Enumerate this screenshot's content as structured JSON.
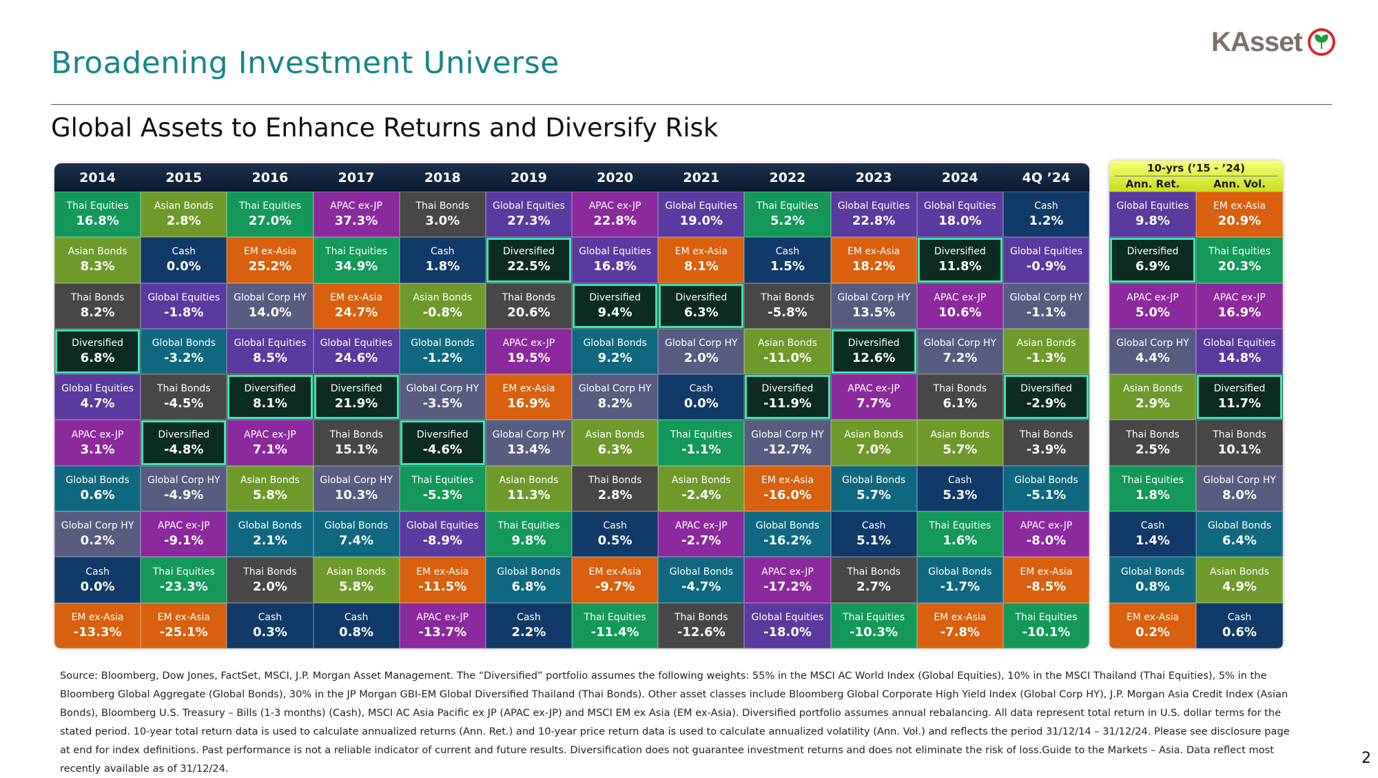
{
  "header": {
    "title": "Broadening Investment Universe",
    "logo": "KAsset",
    "subtitle": "Global Assets to Enhance Returns and Diversify Risk"
  },
  "asset_styles": {
    "Thai Equities": {
      "fill": "#14985a"
    },
    "Asian Bonds": {
      "fill": "#6e9a2c"
    },
    "Thai Bonds": {
      "fill": "#474747"
    },
    "Diversified": {
      "fill": "#0c2b22",
      "outline": "#3fe3b4"
    },
    "Global Equities": {
      "fill": "#5a3a9e"
    },
    "APAC ex-JP": {
      "fill": "#8b2a9c"
    },
    "Global Bonds": {
      "fill": "#0f6880"
    },
    "Global Corp HY": {
      "fill": "#575c80"
    },
    "Cash": {
      "fill": "#103a68"
    },
    "EM ex-Asia": {
      "fill": "#d8600e"
    }
  },
  "table": {
    "columns": [
      {
        "label": "2014",
        "cells": [
          {
            "asset": "Thai Equities",
            "return": "16.8%"
          },
          {
            "asset": "Asian Bonds",
            "return": "8.3%"
          },
          {
            "asset": "Thai Bonds",
            "return": "8.2%"
          },
          {
            "asset": "Diversified",
            "return": "6.8%"
          },
          {
            "asset": "Global Equities",
            "return": "4.7%"
          },
          {
            "asset": "APAC ex-JP",
            "return": "3.1%"
          },
          {
            "asset": "Global Bonds",
            "return": "0.6%"
          },
          {
            "asset": "Global Corp HY",
            "return": "0.2%"
          },
          {
            "asset": "Cash",
            "return": "0.0%"
          },
          {
            "asset": "EM ex-Asia",
            "return": "-13.3%"
          }
        ]
      },
      {
        "label": "2015",
        "cells": [
          {
            "asset": "Asian Bonds",
            "return": "2.8%"
          },
          {
            "asset": "Cash",
            "return": "0.0%"
          },
          {
            "asset": "Global Equities",
            "return": "-1.8%"
          },
          {
            "asset": "Global Bonds",
            "return": "-3.2%"
          },
          {
            "asset": "Thai Bonds",
            "return": "-4.5%"
          },
          {
            "asset": "Diversified",
            "return": "-4.8%"
          },
          {
            "asset": "Global Corp HY",
            "return": "-4.9%"
          },
          {
            "asset": "APAC ex-JP",
            "return": "-9.1%"
          },
          {
            "asset": "Thai Equities",
            "return": "-23.3%"
          },
          {
            "asset": "EM ex-Asia",
            "return": "-25.1%"
          }
        ]
      },
      {
        "label": "2016",
        "cells": [
          {
            "asset": "Thai Equities",
            "return": "27.0%"
          },
          {
            "asset": "EM ex-Asia",
            "return": "25.2%"
          },
          {
            "asset": "Global Corp HY",
            "return": "14.0%"
          },
          {
            "asset": "Global Equities",
            "return": "8.5%"
          },
          {
            "asset": "Diversified",
            "return": "8.1%"
          },
          {
            "asset": "APAC ex-JP",
            "return": "7.1%"
          },
          {
            "asset": "Asian Bonds",
            "return": "5.8%"
          },
          {
            "asset": "Global Bonds",
            "return": "2.1%"
          },
          {
            "asset": "Thai Bonds",
            "return": "2.0%"
          },
          {
            "asset": "Cash",
            "return": "0.3%"
          }
        ]
      },
      {
        "label": "2017",
        "cells": [
          {
            "asset": "APAC ex-JP",
            "return": "37.3%"
          },
          {
            "asset": "Thai Equities",
            "return": "34.9%"
          },
          {
            "asset": "EM ex-Asia",
            "return": "24.7%"
          },
          {
            "asset": "Global Equities",
            "return": "24.6%"
          },
          {
            "asset": "Diversified",
            "return": "21.9%"
          },
          {
            "asset": "Thai Bonds",
            "return": "15.1%"
          },
          {
            "asset": "Global Corp HY",
            "return": "10.3%"
          },
          {
            "asset": "Global Bonds",
            "return": "7.4%"
          },
          {
            "asset": "Asian Bonds",
            "return": "5.8%"
          },
          {
            "asset": "Cash",
            "return": "0.8%"
          }
        ]
      },
      {
        "label": "2018",
        "cells": [
          {
            "asset": "Thai Bonds",
            "return": "3.0%"
          },
          {
            "asset": "Cash",
            "return": "1.8%"
          },
          {
            "asset": "Asian Bonds",
            "return": "-0.8%"
          },
          {
            "asset": "Global Bonds",
            "return": "-1.2%"
          },
          {
            "asset": "Global Corp HY",
            "return": "-3.5%"
          },
          {
            "asset": "Diversified",
            "return": "-4.6%"
          },
          {
            "asset": "Thai Equities",
            "return": "-5.3%"
          },
          {
            "asset": "Global Equities",
            "return": "-8.9%"
          },
          {
            "asset": "EM ex-Asia",
            "return": "-11.5%"
          },
          {
            "asset": "APAC ex-JP",
            "return": "-13.7%"
          }
        ]
      },
      {
        "label": "2019",
        "cells": [
          {
            "asset": "Global Equities",
            "return": "27.3%"
          },
          {
            "asset": "Diversified",
            "return": "22.5%"
          },
          {
            "asset": "Thai Bonds",
            "return": "20.6%"
          },
          {
            "asset": "APAC ex-JP",
            "return": "19.5%"
          },
          {
            "asset": "EM ex-Asia",
            "return": "16.9%"
          },
          {
            "asset": "Global Corp HY",
            "return": "13.4%"
          },
          {
            "asset": "Asian Bonds",
            "return": "11.3%"
          },
          {
            "asset": "Thai Equities",
            "return": "9.8%"
          },
          {
            "asset": "Global Bonds",
            "return": "6.8%"
          },
          {
            "asset": "Cash",
            "return": "2.2%"
          }
        ]
      },
      {
        "label": "2020",
        "cells": [
          {
            "asset": "APAC ex-JP",
            "return": "22.8%"
          },
          {
            "asset": "Global Equities",
            "return": "16.8%"
          },
          {
            "asset": "Diversified",
            "return": "9.4%"
          },
          {
            "asset": "Global Bonds",
            "return": "9.2%"
          },
          {
            "asset": "Global Corp HY",
            "return": "8.2%"
          },
          {
            "asset": "Asian Bonds",
            "return": "6.3%"
          },
          {
            "asset": "Thai Bonds",
            "return": "2.8%"
          },
          {
            "asset": "Cash",
            "return": "0.5%"
          },
          {
            "asset": "EM ex-Asia",
            "return": "-9.7%"
          },
          {
            "asset": "Thai Equities",
            "return": "-11.4%"
          }
        ]
      },
      {
        "label": "2021",
        "cells": [
          {
            "asset": "Global Equities",
            "return": "19.0%"
          },
          {
            "asset": "EM ex-Asia",
            "return": "8.1%"
          },
          {
            "asset": "Diversified",
            "return": "6.3%"
          },
          {
            "asset": "Global Corp HY",
            "return": "2.0%"
          },
          {
            "asset": "Cash",
            "return": "0.0%"
          },
          {
            "asset": "Thai Equities",
            "return": "-1.1%"
          },
          {
            "asset": "Asian Bonds",
            "return": "-2.4%"
          },
          {
            "asset": "APAC ex-JP",
            "return": "-2.7%"
          },
          {
            "asset": "Global Bonds",
            "return": "-4.7%"
          },
          {
            "asset": "Thai Bonds",
            "return": "-12.6%"
          }
        ]
      },
      {
        "label": "2022",
        "cells": [
          {
            "asset": "Thai Equities",
            "return": "5.2%"
          },
          {
            "asset": "Cash",
            "return": "1.5%"
          },
          {
            "asset": "Thai Bonds",
            "return": "-5.8%"
          },
          {
            "asset": "Asian Bonds",
            "return": "-11.0%"
          },
          {
            "asset": "Diversified",
            "return": "-11.9%"
          },
          {
            "asset": "Global Corp HY",
            "return": "-12.7%"
          },
          {
            "asset": "EM ex-Asia",
            "return": "-16.0%"
          },
          {
            "asset": "Global Bonds",
            "return": "-16.2%"
          },
          {
            "asset": "APAC ex-JP",
            "return": "-17.2%"
          },
          {
            "asset": "Global Equities",
            "return": "-18.0%"
          }
        ]
      },
      {
        "label": "2023",
        "cells": [
          {
            "asset": "Global Equities",
            "return": "22.8%"
          },
          {
            "asset": "EM ex-Asia",
            "return": "18.2%"
          },
          {
            "asset": "Global Corp HY",
            "return": "13.5%"
          },
          {
            "asset": "Diversified",
            "return": "12.6%"
          },
          {
            "asset": "APAC ex-JP",
            "return": "7.7%"
          },
          {
            "asset": "Asian Bonds",
            "return": "7.0%"
          },
          {
            "asset": "Global Bonds",
            "return": "5.7%"
          },
          {
            "asset": "Cash",
            "return": "5.1%"
          },
          {
            "asset": "Thai Bonds",
            "return": "2.7%"
          },
          {
            "asset": "Thai Equities",
            "return": "-10.3%"
          }
        ]
      },
      {
        "label": "2024",
        "cells": [
          {
            "asset": "Global Equities",
            "return": "18.0%"
          },
          {
            "asset": "Diversified",
            "return": "11.8%"
          },
          {
            "asset": "APAC ex-JP",
            "return": "10.6%"
          },
          {
            "asset": "Global Corp HY",
            "return": "7.2%"
          },
          {
            "asset": "Thai Bonds",
            "return": "6.1%"
          },
          {
            "asset": "Asian Bonds",
            "return": "5.7%"
          },
          {
            "asset": "Cash",
            "return": "5.3%"
          },
          {
            "asset": "Thai Equities",
            "return": "1.6%"
          },
          {
            "asset": "Global Bonds",
            "return": "-1.7%"
          },
          {
            "asset": "EM ex-Asia",
            "return": "-7.8%"
          }
        ]
      },
      {
        "label": "4Q ’24",
        "cells": [
          {
            "asset": "Cash",
            "return": "1.2%"
          },
          {
            "asset": "Global Equities",
            "return": "-0.9%"
          },
          {
            "asset": "Global Corp HY",
            "return": "-1.1%"
          },
          {
            "asset": "Asian Bonds",
            "return": "-1.3%"
          },
          {
            "asset": "Diversified",
            "return": "-2.9%"
          },
          {
            "asset": "Thai Bonds",
            "return": "-3.9%"
          },
          {
            "asset": "Global Bonds",
            "return": "-5.1%"
          },
          {
            "asset": "APAC ex-JP",
            "return": "-8.0%"
          },
          {
            "asset": "EM ex-Asia",
            "return": "-8.5%"
          },
          {
            "asset": "Thai Equities",
            "return": "-10.1%"
          }
        ]
      }
    ]
  },
  "ten_year": {
    "title": "10-yrs (’15 - ’24)",
    "columns": [
      {
        "label": "Ann. Ret.",
        "cells": [
          {
            "asset": "Global Equities",
            "return": "9.8%"
          },
          {
            "asset": "Diversified",
            "return": "6.9%"
          },
          {
            "asset": "APAC ex-JP",
            "return": "5.0%"
          },
          {
            "asset": "Global Corp HY",
            "return": "4.4%"
          },
          {
            "asset": "Asian Bonds",
            "return": "2.9%"
          },
          {
            "asset": "Thai Bonds",
            "return": "2.5%"
          },
          {
            "asset": "Thai Equities",
            "return": "1.8%"
          },
          {
            "asset": "Cash",
            "return": "1.4%"
          },
          {
            "asset": "Global Bonds",
            "return": "0.8%"
          },
          {
            "asset": "EM ex-Asia",
            "return": "0.2%"
          }
        ]
      },
      {
        "label": "Ann. Vol.",
        "cells": [
          {
            "asset": "EM ex-Asia",
            "return": "20.9%"
          },
          {
            "asset": "Thai Equities",
            "return": "20.3%"
          },
          {
            "asset": "APAC ex-JP",
            "return": "16.9%"
          },
          {
            "asset": "Global Equities",
            "return": "14.8%"
          },
          {
            "asset": "Diversified",
            "return": "11.7%"
          },
          {
            "asset": "Thai Bonds",
            "return": "10.1%"
          },
          {
            "asset": "Global Corp HY",
            "return": "8.0%"
          },
          {
            "asset": "Global Bonds",
            "return": "6.4%"
          },
          {
            "asset": "Asian Bonds",
            "return": "4.9%"
          },
          {
            "asset": "Cash",
            "return": "0.6%"
          }
        ]
      }
    ]
  },
  "source": "Source: Bloomberg, Dow Jones, FactSet, MSCI, J.P. Morgan Asset Management. The “Diversified” portfolio assumes the following weights: 55% in the MSCI AC World Index (Global Equities), 10% in the MSCI Thailand (Thai Equities), 5% in the Bloomberg Global Aggregate (Global Bonds), 30% in the JP Morgan GBI-EM Global Diversified Thailand (Thai Bonds). Other asset classes include Bloomberg Global Corporate High Yield Index (Global Corp HY), J.P. Morgan Asia Credit Index (Asian Bonds), Bloomberg U.S. Treasury – Bills (1-3 months) (Cash), MSCI AC Asia Pacific ex JP (APAC ex-JP) and MSCI EM ex Asia (EM ex-Asia). Diversified portfolio assumes annual rebalancing. All data represent total return in U.S. dollar terms for the stated period. 10-year total return data is used to calculate annualized returns (Ann. Ret.) and 10-year price return data is used to calculate annualized volatility (Ann. Vol.) and reflects the period 31/12/14 – 31/12/24. Please see disclosure page at end for index definitions. Past performance is not a reliable indicator of current and future results. Diversification does not guarantee investment returns and does not eliminate the risk of loss.Guide to the Markets – Asia. Data reflect most recently available as of 31/12/24.",
  "page_number": "2"
}
